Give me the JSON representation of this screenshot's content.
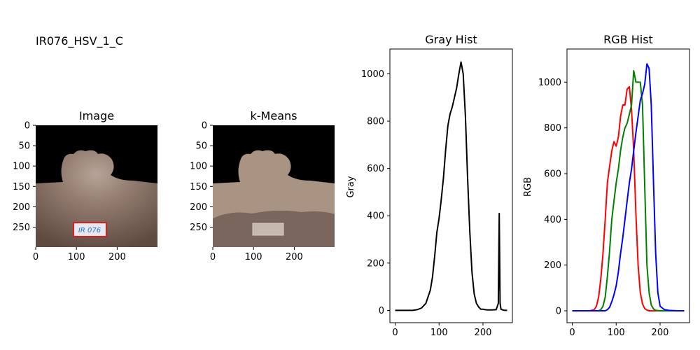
{
  "figure_title": "IR076_HSV_1_C",
  "chart_data": [
    {
      "type": "image",
      "title": "Image",
      "xlim": [
        0,
        299
      ],
      "ylim": [
        299,
        0
      ],
      "xticks": [
        0,
        100,
        200
      ],
      "yticks": [
        0,
        50,
        100,
        150,
        200,
        250
      ],
      "label_text": "IR 076",
      "colors": {
        "background": "#000000",
        "skin_dark": "#6b5548",
        "skin_light": "#b19c90",
        "label_border": "#d91e1e",
        "label_text": "#2a6fd6"
      }
    },
    {
      "type": "image",
      "title": "k-Means",
      "xlim": [
        0,
        299
      ],
      "ylim": [
        299,
        0
      ],
      "xticks": [
        0,
        100,
        200
      ],
      "yticks": [
        0,
        50,
        100,
        150,
        200,
        250
      ],
      "colors": {
        "background": "#000000",
        "cluster_light": "#a99484",
        "cluster_dark": "#7a665c",
        "cluster_pale": "#c6b8ad"
      }
    },
    {
      "type": "line",
      "title": "Gray Hist",
      "xlabel": "",
      "ylabel": "Gray",
      "xlim": [
        -12,
        267
      ],
      "ylim": [
        -52,
        1105
      ],
      "xticks": [
        0,
        100,
        200
      ],
      "yticks": [
        0,
        200,
        400,
        600,
        800,
        1000
      ],
      "series": [
        {
          "color": "#000000",
          "x": [
            0,
            20,
            40,
            50,
            60,
            70,
            80,
            85,
            90,
            95,
            100,
            105,
            110,
            115,
            120,
            125,
            130,
            135,
            140,
            145,
            150,
            155,
            160,
            165,
            170,
            175,
            180,
            185,
            190,
            195,
            200,
            205,
            210,
            220,
            230,
            235,
            237,
            239,
            241,
            245,
            250,
            255
          ],
          "y": [
            0,
            0,
            0,
            3,
            10,
            30,
            85,
            140,
            230,
            330,
            390,
            470,
            560,
            680,
            780,
            830,
            860,
            900,
            940,
            1000,
            1050,
            1000,
            820,
            560,
            330,
            160,
            70,
            30,
            15,
            5,
            5,
            3,
            2,
            2,
            3,
            30,
            410,
            30,
            5,
            2,
            0,
            0
          ]
        }
      ]
    },
    {
      "type": "line",
      "title": "RGB Hist",
      "xlabel": "",
      "ylabel": "RGB",
      "xlim": [
        -12,
        267
      ],
      "ylim": [
        -52,
        1145
      ],
      "xticks": [
        0,
        100,
        200
      ],
      "yticks": [
        0,
        200,
        400,
        600,
        800,
        1000
      ],
      "series": [
        {
          "color": "#ff0000",
          "x": [
            0,
            20,
            40,
            50,
            55,
            60,
            65,
            70,
            75,
            80,
            85,
            90,
            95,
            100,
            105,
            110,
            115,
            120,
            125,
            130,
            135,
            140,
            145,
            150,
            155,
            160,
            165,
            170,
            175,
            180,
            190,
            200,
            220,
            255
          ],
          "y": [
            0,
            0,
            0,
            5,
            20,
            60,
            140,
            250,
            400,
            560,
            630,
            700,
            740,
            720,
            760,
            850,
            900,
            900,
            970,
            980,
            880,
            700,
            420,
            200,
            80,
            30,
            10,
            3,
            0,
            0,
            0,
            0,
            0,
            0
          ]
        },
        {
          "color": "#008000",
          "x": [
            0,
            20,
            40,
            60,
            65,
            70,
            75,
            80,
            85,
            90,
            95,
            100,
            105,
            110,
            115,
            120,
            125,
            130,
            135,
            140,
            145,
            150,
            155,
            160,
            165,
            170,
            175,
            180,
            185,
            190,
            200,
            220,
            255
          ],
          "y": [
            0,
            0,
            0,
            0,
            5,
            20,
            60,
            150,
            260,
            400,
            480,
            560,
            620,
            700,
            760,
            800,
            820,
            860,
            900,
            1050,
            1000,
            1000,
            1000,
            900,
            550,
            200,
            80,
            25,
            8,
            2,
            0,
            0,
            0
          ]
        },
        {
          "color": "#0000ff",
          "x": [
            0,
            20,
            40,
            60,
            75,
            80,
            85,
            90,
            95,
            100,
            105,
            110,
            115,
            120,
            125,
            130,
            135,
            140,
            145,
            150,
            155,
            160,
            165,
            170,
            175,
            180,
            185,
            190,
            195,
            200,
            210,
            220,
            240,
            255
          ],
          "y": [
            0,
            0,
            0,
            0,
            0,
            5,
            15,
            40,
            70,
            110,
            170,
            250,
            320,
            400,
            480,
            560,
            620,
            700,
            780,
            850,
            920,
            950,
            990,
            1080,
            1060,
            900,
            560,
            250,
            80,
            20,
            5,
            2,
            0,
            0
          ]
        }
      ]
    }
  ]
}
